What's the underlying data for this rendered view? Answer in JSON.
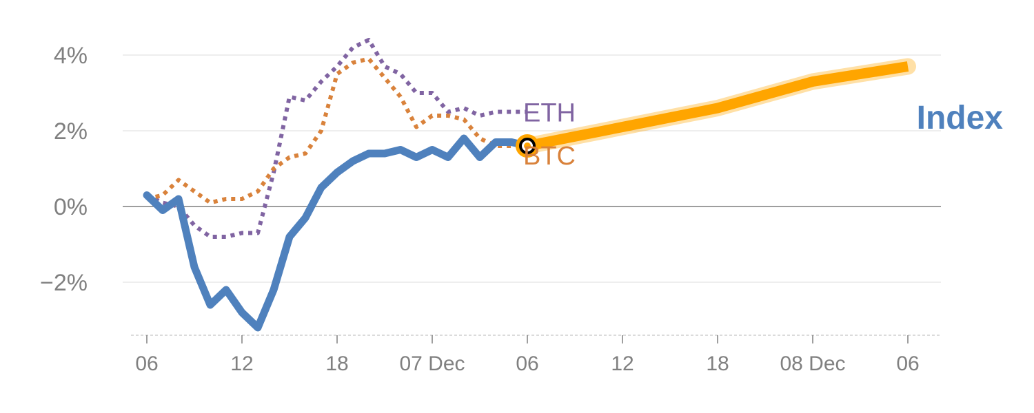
{
  "chart_data": {
    "type": "line",
    "x_ticks": [
      "06",
      "12",
      "18",
      "07 Dec",
      "06",
      "12",
      "18",
      "08 Dec",
      "06"
    ],
    "y_ticks": [
      "−2%",
      "0%",
      "2%",
      "4%"
    ],
    "ylim": [
      -3.4,
      4.5
    ],
    "x_unit": "hours since 06:00, 6 Dec",
    "xlim": [
      -1,
      50.5
    ],
    "grid": true,
    "legend": "inline labels at line ends",
    "series": [
      {
        "name": "ETH",
        "style": "dotted",
        "color": "#8064a2",
        "x": [
          0,
          1,
          2,
          3,
          4,
          5,
          6,
          7,
          8,
          9,
          10,
          11,
          12,
          13,
          14,
          15,
          16,
          17,
          18,
          19,
          20,
          21,
          22,
          23,
          24
        ],
        "values": [
          0.3,
          0.1,
          0.0,
          -0.5,
          -0.8,
          -0.8,
          -0.7,
          -0.7,
          0.9,
          2.9,
          2.8,
          3.3,
          3.7,
          4.2,
          4.4,
          3.7,
          3.5,
          3.0,
          3.0,
          2.5,
          2.6,
          2.4,
          2.5,
          2.5,
          2.5
        ]
      },
      {
        "name": "BTC",
        "style": "dotted",
        "color": "#d9823b",
        "x": [
          0,
          1,
          2,
          3,
          4,
          5,
          6,
          7,
          8,
          9,
          10,
          11,
          12,
          13,
          14,
          15,
          16,
          17,
          18,
          19,
          20,
          21,
          22,
          23,
          24
        ],
        "values": [
          0.2,
          0.3,
          0.7,
          0.4,
          0.1,
          0.2,
          0.2,
          0.4,
          1.0,
          1.3,
          1.4,
          2.0,
          3.5,
          3.8,
          3.9,
          3.4,
          2.9,
          2.1,
          2.4,
          2.4,
          2.3,
          1.8,
          1.6,
          1.6,
          1.6
        ]
      },
      {
        "name": "Index",
        "style": "solid",
        "color": "#4f81bd",
        "x": [
          0,
          1,
          2,
          3,
          4,
          5,
          6,
          7,
          8,
          9,
          10,
          11,
          12,
          13,
          14,
          15,
          16,
          17,
          18,
          19,
          20,
          21,
          22,
          23,
          24
        ],
        "values": [
          0.3,
          -0.1,
          0.2,
          -1.6,
          -2.6,
          -2.2,
          -2.8,
          -3.2,
          -2.2,
          -0.8,
          -0.3,
          0.5,
          0.9,
          1.2,
          1.4,
          1.4,
          1.5,
          1.3,
          1.5,
          1.3,
          1.8,
          1.3,
          1.7,
          1.7,
          1.6
        ]
      },
      {
        "name": "",
        "style": "forecast",
        "color": "#ffa500",
        "x": [
          24,
          30,
          36,
          42,
          48
        ],
        "values": [
          1.6,
          2.1,
          2.6,
          3.3,
          3.7
        ]
      }
    ],
    "current_point": {
      "x": 24,
      "value": 1.6
    }
  }
}
